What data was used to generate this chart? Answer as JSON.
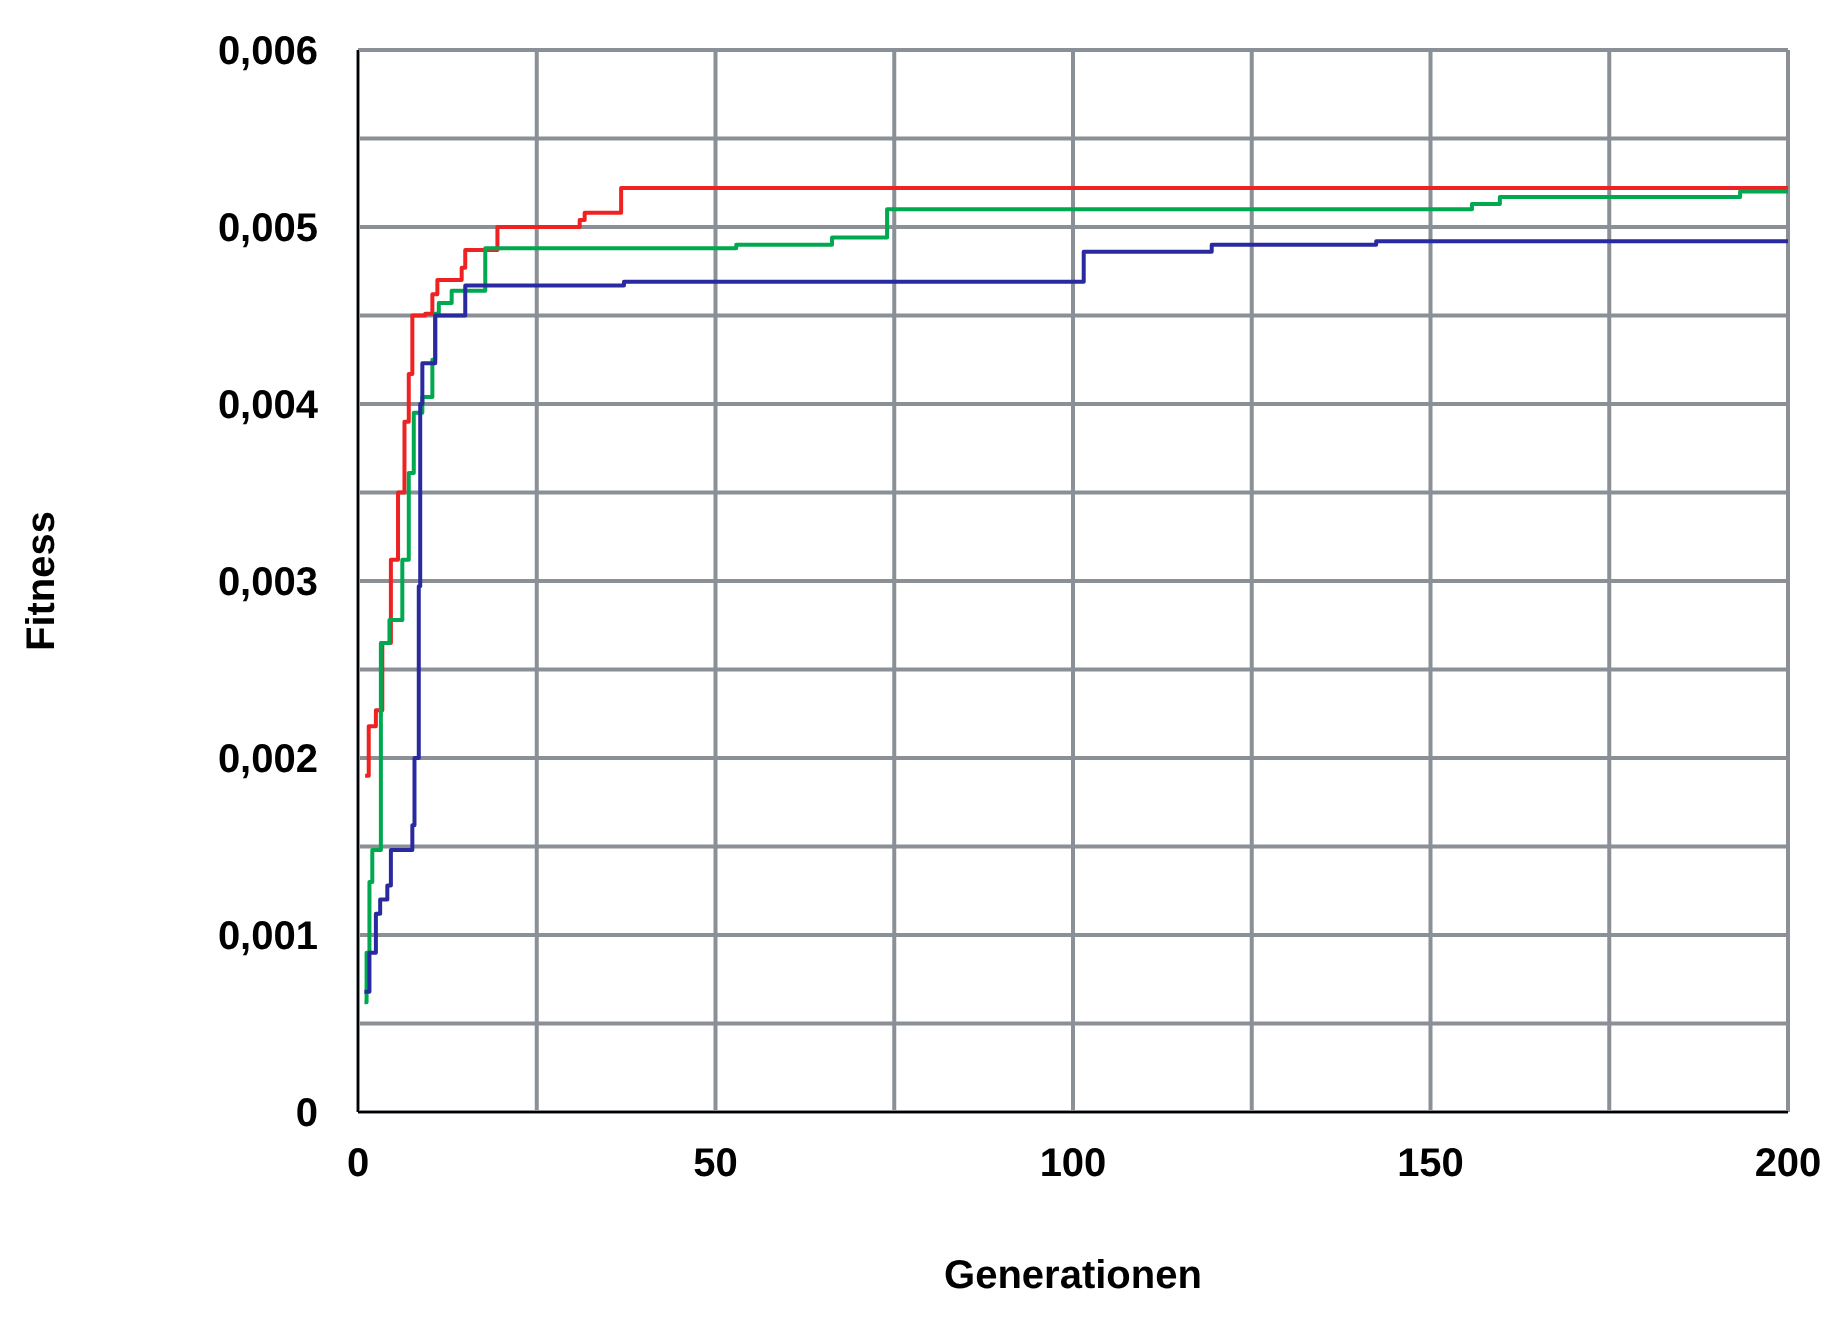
{
  "chart_data": {
    "type": "step",
    "xlabel": "Generationen",
    "ylabel": "Fitness",
    "xlim": [
      0,
      200
    ],
    "ylim": [
      0,
      0.006
    ],
    "xticks": [
      0,
      {
        "value": 25,
        "label": null
      },
      50,
      {
        "value": 75,
        "label": null
      },
      100,
      {
        "value": 125,
        "label": null
      },
      150,
      {
        "value": 175,
        "label": null
      },
      200
    ],
    "yticks": [
      0,
      {
        "value": 0.0005,
        "label": null
      },
      {
        "value": 0.001,
        "label": "0,001"
      },
      {
        "value": 0.0015,
        "label": null
      },
      {
        "value": 0.002,
        "label": "0,002"
      },
      {
        "value": 0.0025,
        "label": null
      },
      {
        "value": 0.003,
        "label": "0,003"
      },
      {
        "value": 0.0035,
        "label": null
      },
      {
        "value": 0.004,
        "label": "0,004"
      },
      {
        "value": 0.0045,
        "label": null
      },
      {
        "value": 0.005,
        "label": "0,005"
      },
      {
        "value": 0.0055,
        "label": null
      },
      {
        "value": 0.006,
        "label": "0,006"
      }
    ],
    "grid": true,
    "legend": false,
    "marker": "none",
    "line_style": "solid",
    "series": [
      {
        "color": "#ee2222",
        "x": [
          1,
          1.5,
          2.5,
          3.4,
          4.6,
          5.6,
          6.5,
          7.1,
          7.6,
          9.4,
          10.4,
          11.1,
          14.5,
          15,
          19.5,
          31,
          31.7,
          36.8,
          200
        ],
        "values": [
          0.0019,
          0.00218,
          0.00227,
          0.00265,
          0.00312,
          0.0035,
          0.0039,
          0.00417,
          0.0045,
          0.00451,
          0.00462,
          0.0047,
          0.00477,
          0.00487,
          0.005,
          0.00504,
          0.00508,
          0.00522,
          0.00522
        ]
      },
      {
        "color": "#00a850",
        "x": [
          0.9,
          1.2,
          1.6,
          2,
          3.2,
          4.4,
          6.2,
          7.1,
          7.8,
          9,
          10.4,
          10.8,
          11.3,
          13.1,
          17.8,
          52.9,
          66.3,
          74,
          155.8,
          159.7,
          193.3,
          200
        ],
        "values": [
          0.00062,
          0.0009,
          0.0013,
          0.00148,
          0.00265,
          0.00278,
          0.00312,
          0.00361,
          0.00395,
          0.00404,
          0.00425,
          0.00451,
          0.00457,
          0.00464,
          0.00488,
          0.0049,
          0.00494,
          0.0051,
          0.00513,
          0.00517,
          0.0052,
          0.0052
        ]
      },
      {
        "color": "#2a2aa0",
        "x": [
          0.9,
          1.6,
          2.5,
          3.1,
          4.1,
          4.6,
          7.6,
          7.9,
          8.5,
          8.7,
          9,
          10.8,
          15,
          37.2,
          101.5,
          119.4,
          142.4,
          200
        ],
        "values": [
          0.00068,
          0.0009,
          0.00112,
          0.0012,
          0.00128,
          0.00148,
          0.00162,
          0.002,
          0.00297,
          0.004,
          0.00423,
          0.0045,
          0.00467,
          0.00469,
          0.00486,
          0.0049,
          0.00492,
          0.00492
        ]
      }
    ]
  }
}
